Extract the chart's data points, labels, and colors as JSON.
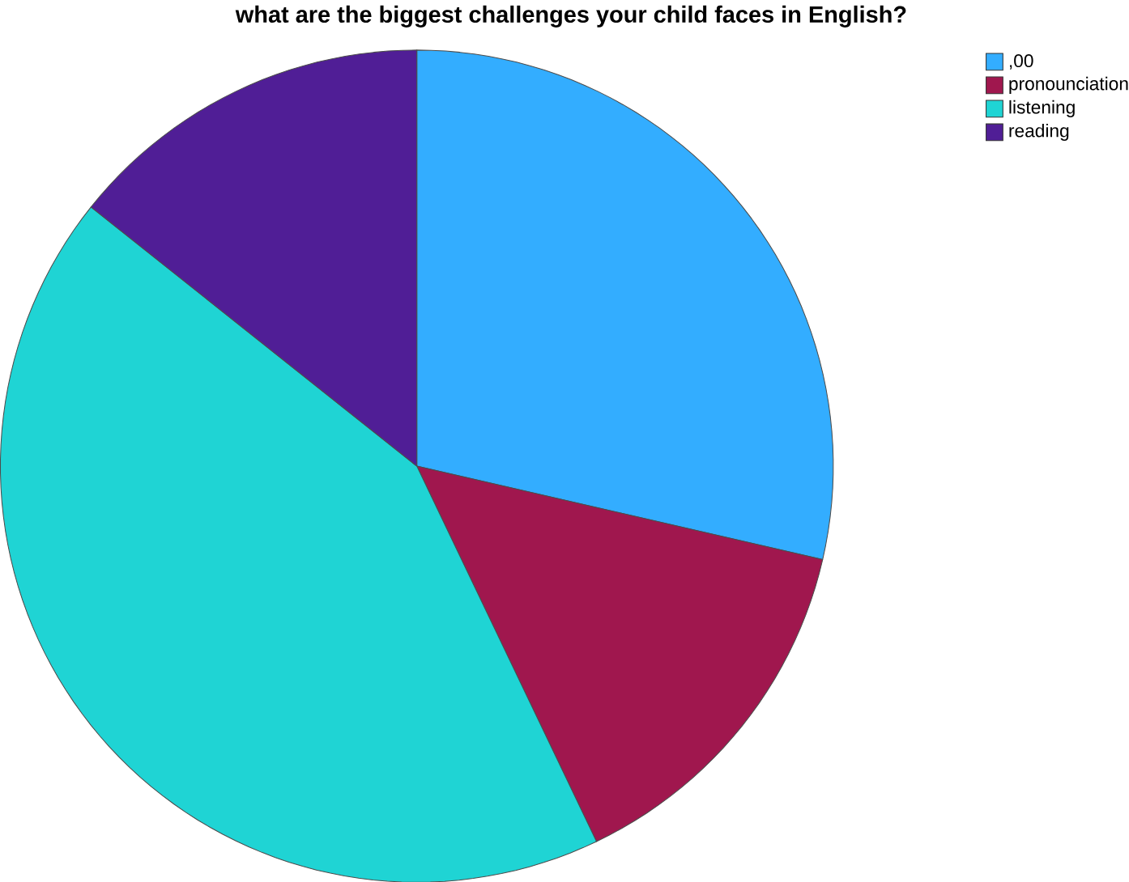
{
  "chart_data": {
    "type": "pie",
    "title": "what are the biggest challenges your child faces in English?",
    "categories": [
      ",00",
      "pronounciation",
      "listening",
      "reading"
    ],
    "values": [
      28.6,
      14.3,
      42.8,
      14.3
    ],
    "colors": [
      "#33adff",
      "#a0174e",
      "#1fd4d4",
      "#501e96"
    ],
    "legend": "top right"
  }
}
